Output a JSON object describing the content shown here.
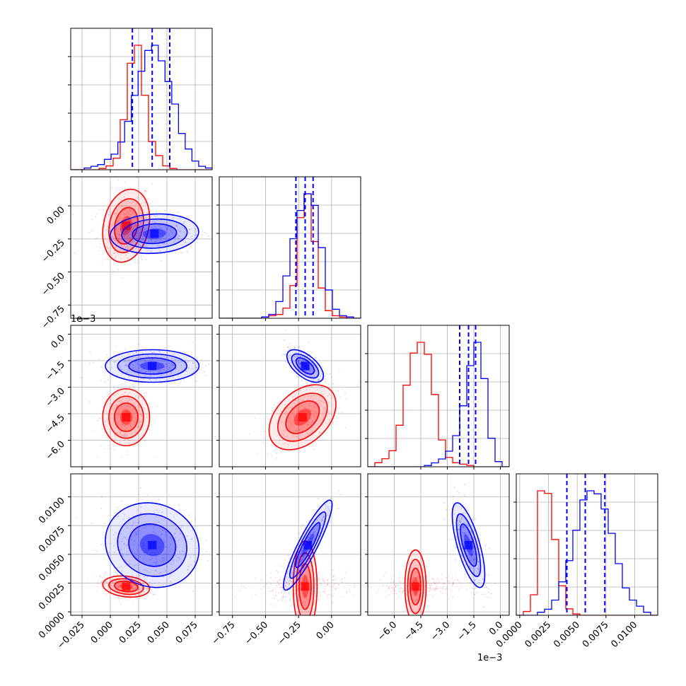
{
  "chart_data": {
    "type": "corner",
    "colors": {
      "red": "#ff0000",
      "blue": "#0000ff"
    },
    "panels_grid": 4,
    "ranges": [
      [
        -0.035,
        0.09
      ],
      [
        -0.85,
        0.22
      ],
      [
        -0.0075,
        0.0005
      ],
      [
        -0.0003,
        0.012
      ]
    ],
    "grid": true,
    "dashed_quantiles_blue": [
      [
        0.0195,
        0.037,
        0.0525
      ],
      [
        -0.27,
        -0.2,
        -0.14
      ],
      [
        -0.0023,
        -0.0018,
        -0.0014
      ],
      [
        0.0041,
        0.0057,
        0.0074
      ]
    ],
    "tick_labels": {
      "x0": [
        "−0.025",
        "0.000",
        "0.025",
        "0.050",
        "0.075"
      ],
      "x1": [
        "−0.75",
        "−0.50",
        "−0.25",
        "0.00"
      ],
      "x2": [
        "−6.0",
        "−4.5",
        "−3.0",
        "−1.5",
        "0.0"
      ],
      "x3": [
        "0.0000",
        "0.0025",
        "0.0050",
        "0.0075",
        "0.0100"
      ],
      "y1": [
        "0.00",
        "−0.25",
        "−0.50",
        "−0.75"
      ],
      "y2": [
        "0.0",
        "−1.5",
        "−3.0",
        "−4.5",
        "−6.0"
      ],
      "y3": [
        "0.0100",
        "0.0075",
        "0.0050",
        "0.0025",
        "0.0000"
      ]
    },
    "offset_labels": {
      "y2": "1e−3",
      "x2": "1e−3"
    },
    "hist_red": [
      [
        0,
        0,
        0,
        0,
        1,
        3,
        9,
        39,
        83,
        97,
        58,
        22,
        11,
        3,
        1,
        0,
        0,
        0,
        0,
        0
      ],
      [
        0,
        0,
        0,
        0,
        0,
        0,
        1,
        2,
        3,
        8,
        26,
        80,
        99,
        61,
        24,
        6,
        2,
        1,
        0,
        0
      ],
      [
        0,
        3,
        6,
        12,
        31,
        61,
        85,
        93,
        84,
        54,
        20,
        7,
        3,
        2,
        1,
        0,
        0,
        0,
        0,
        0
      ],
      [
        0,
        3,
        16,
        97,
        95,
        59,
        23,
        5,
        1,
        0,
        0,
        0,
        0,
        0,
        0,
        0,
        0,
        0,
        0,
        0
      ]
    ],
    "hist_blue": [
      [
        0,
        0,
        1,
        2,
        3,
        6,
        9,
        16,
        28,
        43,
        57,
        69,
        72,
        63,
        51,
        38,
        21,
        12,
        5,
        2,
        1
      ],
      [
        0,
        0,
        0,
        0,
        0,
        0,
        1,
        3,
        13,
        33,
        62,
        84,
        97,
        88,
        55,
        22,
        7,
        2,
        1,
        0
      ],
      [
        0,
        0,
        0,
        0,
        0,
        0,
        0,
        0,
        1,
        3,
        6,
        12,
        24,
        47,
        78,
        96,
        68,
        22,
        4,
        0
      ],
      [
        0,
        0,
        0,
        1,
        2,
        5,
        11,
        18,
        28,
        38,
        41,
        40,
        35,
        27,
        17,
        9,
        5,
        3,
        1,
        0
      ]
    ],
    "blobs_red": [
      {
        "i": 1,
        "j": 0,
        "mx": 0.014,
        "my": -0.15,
        "sx": 0.009,
        "sy": 0.12,
        "r": 0.2
      },
      {
        "i": 2,
        "j": 0,
        "mx": 0.014,
        "my": -0.0047,
        "sx": 0.009,
        "sy": 0.0007,
        "r": 0.0
      },
      {
        "i": 2,
        "j": 1,
        "mx": -0.22,
        "my": -0.0047,
        "sx": 0.11,
        "sy": 0.0008,
        "r": 0.4
      },
      {
        "i": 3,
        "j": 0,
        "mx": 0.014,
        "my": 0.0022,
        "sx": 0.009,
        "sy": 0.0004,
        "r": -0.2
      },
      {
        "i": 3,
        "j": 1,
        "mx": -0.2,
        "my": 0.0022,
        "sx": 0.15,
        "sy": 0.00045,
        "r": 0.0
      },
      {
        "i": 3,
        "j": 2,
        "mx": -0.0048,
        "my": 0.0022,
        "sx": 0.0009,
        "sy": 0.0004,
        "r": 0.0
      }
    ],
    "blobs_blue": [
      {
        "i": 1,
        "j": 0,
        "mx": 0.039,
        "my": -0.21,
        "sx": 0.017,
        "sy": 0.065,
        "r": 0.1
      },
      {
        "i": 2,
        "j": 0,
        "mx": 0.037,
        "my": -0.0018,
        "sx": 0.018,
        "sy": 0.0004,
        "r": 0.0
      },
      {
        "i": 2,
        "j": 1,
        "mx": -0.2,
        "my": -0.0018,
        "sx": 0.06,
        "sy": 0.0004,
        "r": -0.6
      },
      {
        "i": 3,
        "j": 0,
        "mx": 0.037,
        "my": 0.0058,
        "sx": 0.018,
        "sy": 0.0016,
        "r": -0.1
      },
      {
        "i": 3,
        "j": 1,
        "mx": -0.18,
        "my": 0.0058,
        "sx": 0.08,
        "sy": 0.0017,
        "r": 0.9
      },
      {
        "i": 3,
        "j": 2,
        "mx": -0.0018,
        "my": 0.0058,
        "sx": 0.0004,
        "sy": 0.0016,
        "r": -0.7
      }
    ]
  }
}
